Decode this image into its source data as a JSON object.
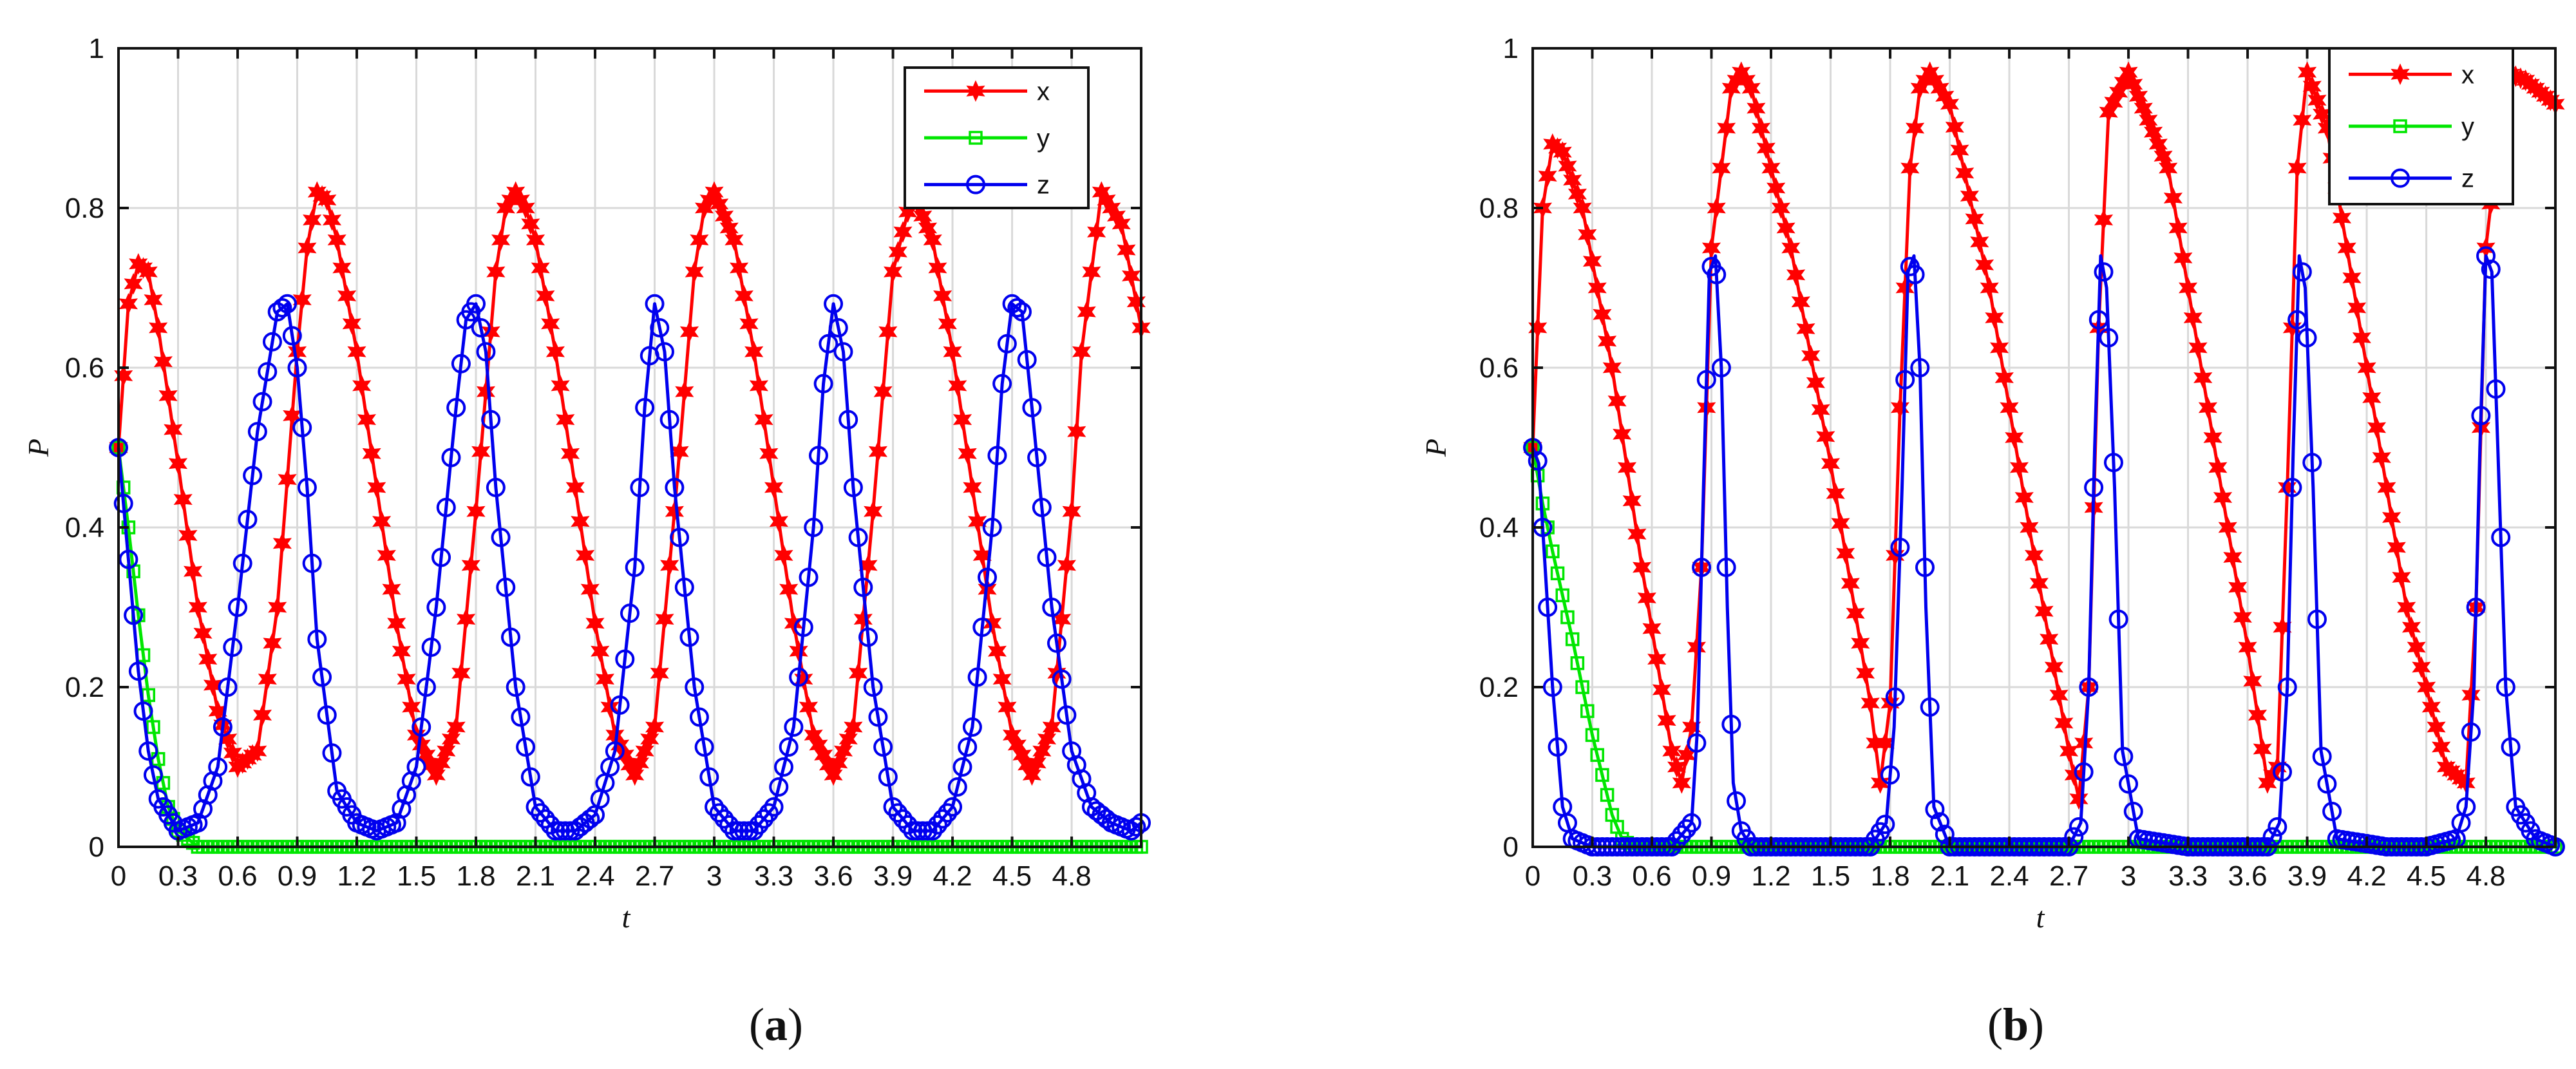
{
  "chart_data": [
    {
      "type": "line",
      "panel_label_prefix": "(",
      "panel_label": "a",
      "panel_label_suffix": ")",
      "xlabel": "t",
      "ylabel": "P",
      "xlim": [
        0,
        5.15
      ],
      "ylim": [
        0,
        1
      ],
      "xticks": [
        "0",
        "0.3",
        "0.6",
        "0.9",
        "1.2",
        "1.5",
        "1.8",
        "2.1",
        "2.4",
        "2.7",
        "3",
        "3.3",
        "3.6",
        "3.9",
        "4.2",
        "4.5",
        "4.8"
      ],
      "yticks": [
        "0",
        "0.2",
        "0.4",
        "0.6",
        "0.8",
        "1"
      ],
      "grid": true,
      "legend_position": "top-right",
      "series": [
        {
          "name": "x",
          "color": "#ff0000",
          "marker": "hexagram",
          "x": [
            0,
            0.05,
            0.1,
            0.15,
            0.2,
            0.3,
            0.4,
            0.5,
            0.6,
            0.7,
            0.8,
            0.9,
            0.95,
            1.0,
            1.05,
            1.1,
            1.2,
            1.3,
            1.4,
            1.5,
            1.6,
            1.7,
            1.8,
            1.9,
            1.95,
            2.0,
            2.05,
            2.1,
            2.2,
            2.3,
            2.4,
            2.5,
            2.6,
            2.7,
            2.8,
            2.9,
            2.95,
            3.0,
            3.1,
            3.2,
            3.3,
            3.4,
            3.5,
            3.6,
            3.7,
            3.8,
            3.9,
            4.0,
            4.1,
            4.2,
            4.3,
            4.4,
            4.5,
            4.6,
            4.7,
            4.8,
            4.85,
            4.95,
            5.05,
            5.15
          ],
          "y": [
            0.5,
            0.68,
            0.73,
            0.72,
            0.65,
            0.48,
            0.3,
            0.17,
            0.1,
            0.12,
            0.3,
            0.62,
            0.75,
            0.82,
            0.81,
            0.76,
            0.62,
            0.45,
            0.28,
            0.14,
            0.09,
            0.15,
            0.42,
            0.72,
            0.8,
            0.82,
            0.8,
            0.76,
            0.62,
            0.45,
            0.28,
            0.14,
            0.09,
            0.15,
            0.42,
            0.72,
            0.8,
            0.82,
            0.76,
            0.62,
            0.45,
            0.28,
            0.14,
            0.09,
            0.15,
            0.42,
            0.72,
            0.82,
            0.76,
            0.62,
            0.45,
            0.28,
            0.14,
            0.09,
            0.15,
            0.42,
            0.62,
            0.82,
            0.78,
            0.65
          ]
        },
        {
          "name": "y",
          "color": "#00e600",
          "marker": "square",
          "x": [
            0,
            0.05,
            0.1,
            0.15,
            0.2,
            0.25,
            0.3,
            0.4,
            0.5,
            1.0,
            2.0,
            3.0,
            4.0,
            5.15
          ],
          "y": [
            0.5,
            0.4,
            0.29,
            0.19,
            0.11,
            0.05,
            0.02,
            0.0,
            0.0,
            0.0,
            0.0,
            0.0,
            0.0,
            0.0
          ]
        },
        {
          "name": "z",
          "color": "#0000ee",
          "marker": "circle",
          "x": [
            0,
            0.05,
            0.1,
            0.15,
            0.2,
            0.3,
            0.4,
            0.5,
            0.6,
            0.7,
            0.8,
            0.85,
            0.9,
            0.95,
            1.0,
            1.1,
            1.2,
            1.3,
            1.4,
            1.5,
            1.6,
            1.7,
            1.75,
            1.8,
            1.85,
            1.9,
            2.0,
            2.1,
            2.2,
            2.3,
            2.4,
            2.5,
            2.6,
            2.65,
            2.7,
            2.75,
            2.8,
            2.9,
            3.0,
            3.1,
            3.2,
            3.3,
            3.4,
            3.5,
            3.55,
            3.6,
            3.65,
            3.7,
            3.8,
            3.9,
            4.0,
            4.1,
            4.2,
            4.3,
            4.4,
            4.45,
            4.5,
            4.55,
            4.6,
            4.7,
            4.8,
            4.9,
            5.0,
            5.1,
            5.15
          ],
          "y": [
            0.5,
            0.36,
            0.22,
            0.12,
            0.06,
            0.02,
            0.03,
            0.1,
            0.3,
            0.52,
            0.67,
            0.68,
            0.6,
            0.45,
            0.26,
            0.07,
            0.03,
            0.02,
            0.03,
            0.1,
            0.3,
            0.55,
            0.66,
            0.68,
            0.62,
            0.45,
            0.2,
            0.05,
            0.02,
            0.02,
            0.04,
            0.12,
            0.35,
            0.55,
            0.68,
            0.62,
            0.45,
            0.2,
            0.05,
            0.02,
            0.02,
            0.05,
            0.15,
            0.4,
            0.58,
            0.68,
            0.62,
            0.45,
            0.2,
            0.05,
            0.02,
            0.02,
            0.05,
            0.15,
            0.4,
            0.58,
            0.68,
            0.67,
            0.55,
            0.3,
            0.12,
            0.05,
            0.03,
            0.02,
            0.03
          ]
        }
      ]
    },
    {
      "type": "line",
      "panel_label_prefix": "(",
      "panel_label": "b",
      "panel_label_suffix": ")",
      "xlabel": "t",
      "ylabel": "P",
      "xlim": [
        0,
        5.15
      ],
      "ylim": [
        0,
        1
      ],
      "xticks": [
        "0",
        "0.3",
        "0.6",
        "0.9",
        "1.2",
        "1.5",
        "1.8",
        "2.1",
        "2.4",
        "2.7",
        "3",
        "3.3",
        "3.6",
        "3.9",
        "4.2",
        "4.5",
        "4.8"
      ],
      "yticks": [
        "0",
        "0.2",
        "0.4",
        "0.6",
        "0.8",
        "1"
      ],
      "grid": true,
      "legend_position": "top-right",
      "series": [
        {
          "name": "x",
          "color": "#ff0000",
          "marker": "hexagram",
          "x": [
            0,
            0.05,
            0.1,
            0.15,
            0.25,
            0.4,
            0.55,
            0.7,
            0.75,
            0.8,
            0.85,
            0.9,
            1.0,
            1.05,
            1.1,
            1.3,
            1.5,
            1.7,
            1.75,
            1.8,
            1.85,
            1.9,
            1.95,
            2.0,
            2.1,
            2.3,
            2.5,
            2.7,
            2.75,
            2.8,
            2.85,
            2.9,
            3.0,
            3.2,
            3.4,
            3.6,
            3.7,
            3.75,
            3.8,
            3.85,
            3.9,
            4.0,
            4.2,
            4.4,
            4.6,
            4.7,
            4.75,
            4.8,
            4.9,
            5.0,
            5.1,
            5.15
          ],
          "y": [
            0.5,
            0.8,
            0.88,
            0.87,
            0.8,
            0.6,
            0.35,
            0.12,
            0.08,
            0.15,
            0.35,
            0.75,
            0.95,
            0.97,
            0.95,
            0.75,
            0.48,
            0.18,
            0.08,
            0.18,
            0.55,
            0.85,
            0.95,
            0.97,
            0.93,
            0.7,
            0.4,
            0.12,
            0.06,
            0.2,
            0.65,
            0.92,
            0.97,
            0.85,
            0.55,
            0.25,
            0.08,
            0.1,
            0.45,
            0.85,
            0.97,
            0.9,
            0.6,
            0.3,
            0.1,
            0.08,
            0.3,
            0.75,
            0.97,
            0.96,
            0.94,
            0.93
          ]
        },
        {
          "name": "y",
          "color": "#00e600",
          "marker": "square",
          "x": [
            0,
            0.05,
            0.1,
            0.2,
            0.3,
            0.4,
            0.45,
            0.5,
            1.0,
            2.0,
            3.0,
            4.0,
            5.15
          ],
          "y": [
            0.5,
            0.43,
            0.37,
            0.26,
            0.14,
            0.04,
            0.01,
            0.0,
            0.0,
            0.0,
            0.0,
            0.0,
            0.0
          ]
        },
        {
          "name": "z",
          "color": "#0000ee",
          "marker": "circle",
          "x": [
            0,
            0.03,
            0.06,
            0.1,
            0.15,
            0.2,
            0.3,
            0.5,
            0.7,
            0.8,
            0.83,
            0.86,
            0.89,
            0.92,
            0.95,
            0.98,
            1.01,
            1.05,
            1.1,
            1.3,
            1.5,
            1.7,
            1.78,
            1.82,
            1.86,
            1.89,
            1.92,
            1.95,
            1.98,
            2.02,
            2.1,
            2.3,
            2.5,
            2.7,
            2.76,
            2.8,
            2.83,
            2.86,
            2.89,
            2.93,
            2.97,
            3.05,
            3.3,
            3.5,
            3.7,
            3.76,
            3.8,
            3.83,
            3.86,
            3.89,
            3.93,
            3.97,
            4.05,
            4.3,
            4.5,
            4.65,
            4.7,
            4.74,
            4.77,
            4.8,
            4.83,
            4.86,
            4.9,
            4.95,
            5.05,
            5.15
          ],
          "y": [
            0.5,
            0.48,
            0.36,
            0.2,
            0.05,
            0.01,
            0.0,
            0.0,
            0.0,
            0.03,
            0.15,
            0.45,
            0.72,
            0.74,
            0.6,
            0.3,
            0.08,
            0.02,
            0.0,
            0.0,
            0.0,
            0.0,
            0.03,
            0.15,
            0.45,
            0.72,
            0.74,
            0.6,
            0.3,
            0.05,
            0.0,
            0.0,
            0.0,
            0.0,
            0.03,
            0.2,
            0.5,
            0.74,
            0.7,
            0.45,
            0.12,
            0.01,
            0.0,
            0.0,
            0.0,
            0.03,
            0.2,
            0.5,
            0.74,
            0.7,
            0.45,
            0.12,
            0.01,
            0.0,
            0.0,
            0.01,
            0.05,
            0.2,
            0.5,
            0.74,
            0.72,
            0.5,
            0.2,
            0.05,
            0.01,
            0.0
          ]
        }
      ]
    }
  ]
}
